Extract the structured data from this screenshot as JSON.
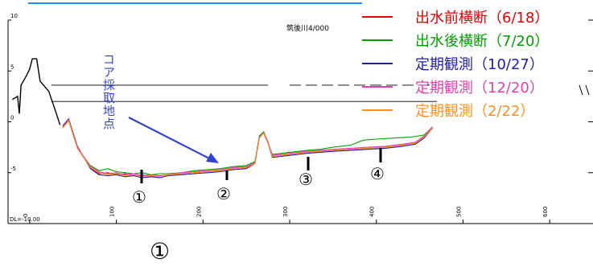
{
  "chart_data": {
    "type": "line",
    "station_label": "筑後川4/000",
    "datum_label": "DL=-10.00",
    "y_ticks": [
      "10",
      "5",
      "0",
      "-5"
    ],
    "y_tick_values": [
      10,
      5,
      0,
      -5
    ],
    "ylim": [
      -10,
      10
    ],
    "x_ticks": [
      "0",
      "100",
      "200",
      "300",
      "400",
      "500",
      "600"
    ],
    "x_tick_values": [
      0,
      100,
      200,
      300,
      400,
      500,
      600
    ],
    "xlim": [
      -25,
      650
    ],
    "series": [
      {
        "name": "出水前横断（6/18）",
        "color": "#e00000",
        "x": [
          38,
          45,
          55,
          70,
          80,
          90,
          100,
          110,
          120,
          130,
          140,
          150,
          160,
          175,
          190,
          205,
          220,
          235,
          250,
          260,
          265,
          270,
          275,
          280,
          290,
          300,
          310,
          320,
          335,
          350,
          370,
          390,
          410,
          430,
          445,
          455,
          465
        ],
        "y": [
          -0.5,
          0.2,
          -2.5,
          -4.5,
          -5.1,
          -5.0,
          -5.2,
          -5.1,
          -5.3,
          -5.2,
          -5.4,
          -5.3,
          -5.2,
          -5.1,
          -5.0,
          -4.9,
          -4.8,
          -4.6,
          -4.5,
          -4.0,
          -1.5,
          -1.0,
          -2.0,
          -3.4,
          -3.3,
          -3.2,
          -3.1,
          -3.0,
          -2.9,
          -2.8,
          -2.7,
          -2.6,
          -2.5,
          -2.3,
          -2.1,
          -1.5,
          -0.5
        ]
      },
      {
        "name": "出水後横断（7/20）",
        "color": "#00a000",
        "x": [
          38,
          45,
          55,
          70,
          80,
          90,
          100,
          110,
          120,
          130,
          140,
          150,
          160,
          175,
          190,
          205,
          220,
          235,
          250,
          260,
          265,
          270,
          275,
          280,
          290,
          300,
          310,
          320,
          335,
          350,
          370,
          385,
          400,
          420,
          440,
          455,
          465
        ],
        "y": [
          -0.6,
          0.1,
          -2.6,
          -4.3,
          -4.8,
          -4.6,
          -4.9,
          -5.0,
          -5.1,
          -5.0,
          -5.2,
          -5.1,
          -5.1,
          -5.0,
          -4.8,
          -4.7,
          -4.6,
          -4.4,
          -4.3,
          -3.9,
          -1.4,
          -1.0,
          -2.1,
          -3.2,
          -3.1,
          -3.0,
          -2.9,
          -2.8,
          -2.7,
          -2.5,
          -2.3,
          -1.8,
          -1.7,
          -1.6,
          -1.5,
          -1.3,
          -0.5
        ]
      },
      {
        "name": "定期観測（10/27）",
        "color": "#2020a0",
        "x": [
          38,
          45,
          55,
          70,
          80,
          90,
          100,
          110,
          120,
          130,
          140,
          150,
          160,
          175,
          190,
          205,
          220,
          235,
          250,
          260,
          265,
          270,
          275,
          280,
          290,
          300,
          310,
          320,
          335,
          350,
          370,
          390,
          410,
          430,
          445,
          455,
          465
        ],
        "y": [
          -0.4,
          0.3,
          -2.4,
          -4.6,
          -5.2,
          -5.3,
          -5.2,
          -5.4,
          -5.3,
          -5.5,
          -5.4,
          -5.5,
          -5.3,
          -5.2,
          -5.1,
          -5.0,
          -4.9,
          -4.7,
          -4.6,
          -4.1,
          -1.5,
          -1.1,
          -2.1,
          -3.5,
          -3.4,
          -3.3,
          -3.2,
          -3.1,
          -3.0,
          -2.9,
          -2.8,
          -2.7,
          -2.6,
          -2.4,
          -2.2,
          -1.6,
          -0.6
        ]
      },
      {
        "name": "定期観測（12/20）",
        "color": "#e040b0",
        "x": [
          38,
          45,
          55,
          70,
          80,
          90,
          100,
          110,
          120,
          130,
          140,
          150,
          160,
          175,
          190,
          205,
          220,
          235,
          250,
          260,
          265,
          270,
          275,
          280,
          290,
          300,
          310,
          320,
          335,
          350,
          370,
          390,
          410,
          430,
          445,
          455,
          465
        ],
        "y": [
          -0.5,
          0.2,
          -2.5,
          -4.4,
          -4.9,
          -5.1,
          -5.0,
          -5.2,
          -5.1,
          -5.3,
          -5.2,
          -5.3,
          -5.2,
          -5.0,
          -4.9,
          -4.8,
          -4.7,
          -4.5,
          -4.4,
          -4.0,
          -1.5,
          -1.1,
          -2.0,
          -3.3,
          -3.2,
          -3.1,
          -3.0,
          -2.9,
          -2.8,
          -2.7,
          -2.6,
          -2.5,
          -2.4,
          -2.2,
          -2.0,
          -1.4,
          -0.5
        ]
      },
      {
        "name": "定期観測（2/22）",
        "color": "#ff9020",
        "x": [
          38,
          45,
          55,
          70,
          80,
          90,
          100,
          110,
          120,
          130,
          140,
          150,
          160,
          175,
          190,
          205,
          220,
          235,
          250,
          260,
          265,
          270,
          275,
          280,
          290,
          300,
          310,
          320,
          335,
          350,
          370,
          390,
          410,
          430,
          445,
          455,
          465
        ],
        "y": [
          -0.6,
          0.1,
          -2.6,
          -4.5,
          -5.0,
          -5.2,
          -5.1,
          -5.3,
          -5.2,
          -5.4,
          -5.3,
          -5.4,
          -5.2,
          -5.1,
          -5.0,
          -4.9,
          -4.8,
          -4.6,
          -4.5,
          -4.1,
          -1.6,
          -1.1,
          -2.1,
          -3.4,
          -3.3,
          -3.2,
          -3.1,
          -3.0,
          -2.9,
          -2.8,
          -2.7,
          -2.6,
          -2.5,
          -2.3,
          -2.1,
          -1.5,
          -0.6
        ]
      }
    ],
    "annotations": {
      "core_label": "コア採取地点",
      "markers": [
        "①",
        "②",
        "③",
        "④"
      ],
      "big_marker": "①"
    }
  }
}
